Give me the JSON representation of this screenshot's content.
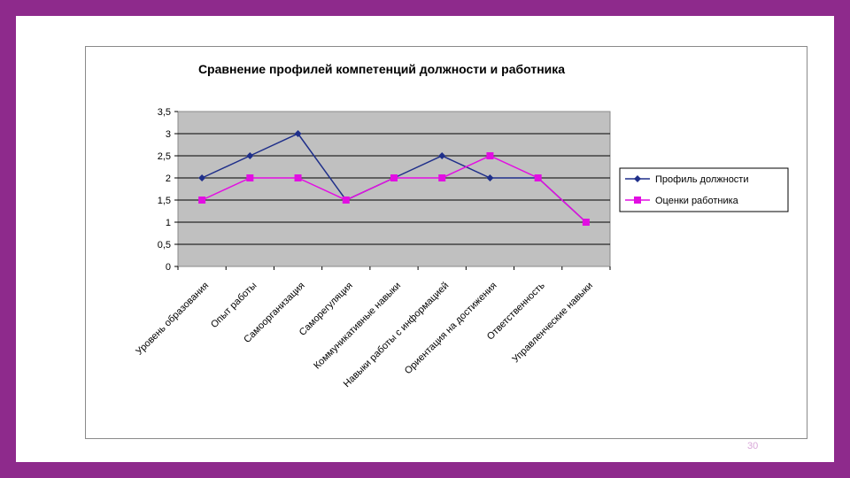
{
  "slide": {
    "number": "30"
  },
  "colors": {
    "border": "#8e2a8c",
    "plot_bg": "#c0c0c0",
    "series_profile": "#1f2f8a",
    "series_employee": "#e20ee2"
  },
  "chart_data": {
    "type": "line",
    "title": "Сравнение профилей компетенций должности и работника",
    "xlabel": "",
    "ylabel": "",
    "ylim": [
      0,
      3.5
    ],
    "yticks": [
      "0",
      "0,5",
      "1",
      "1,5",
      "2",
      "2,5",
      "3",
      "3,5"
    ],
    "categories": [
      "Уровень образования",
      "Опыт работы",
      "Самоорганизация",
      "Саморегуляция",
      "Коммуникативные навыки",
      "Навыки работы с информацией",
      "Ориентация на достижения",
      "Ответственность",
      "Управленческие навыки"
    ],
    "series": [
      {
        "name": "Профиль должности",
        "marker": "diamond",
        "color": "#1f2f8a",
        "values": [
          2,
          2.5,
          3,
          1.5,
          2,
          2.5,
          2,
          2,
          1
        ]
      },
      {
        "name": "Оценки работника",
        "marker": "square",
        "color": "#e20ee2",
        "values": [
          1.5,
          2,
          2,
          1.5,
          2,
          2,
          2.5,
          2,
          1
        ]
      }
    ],
    "legend": "right",
    "grid": true
  }
}
